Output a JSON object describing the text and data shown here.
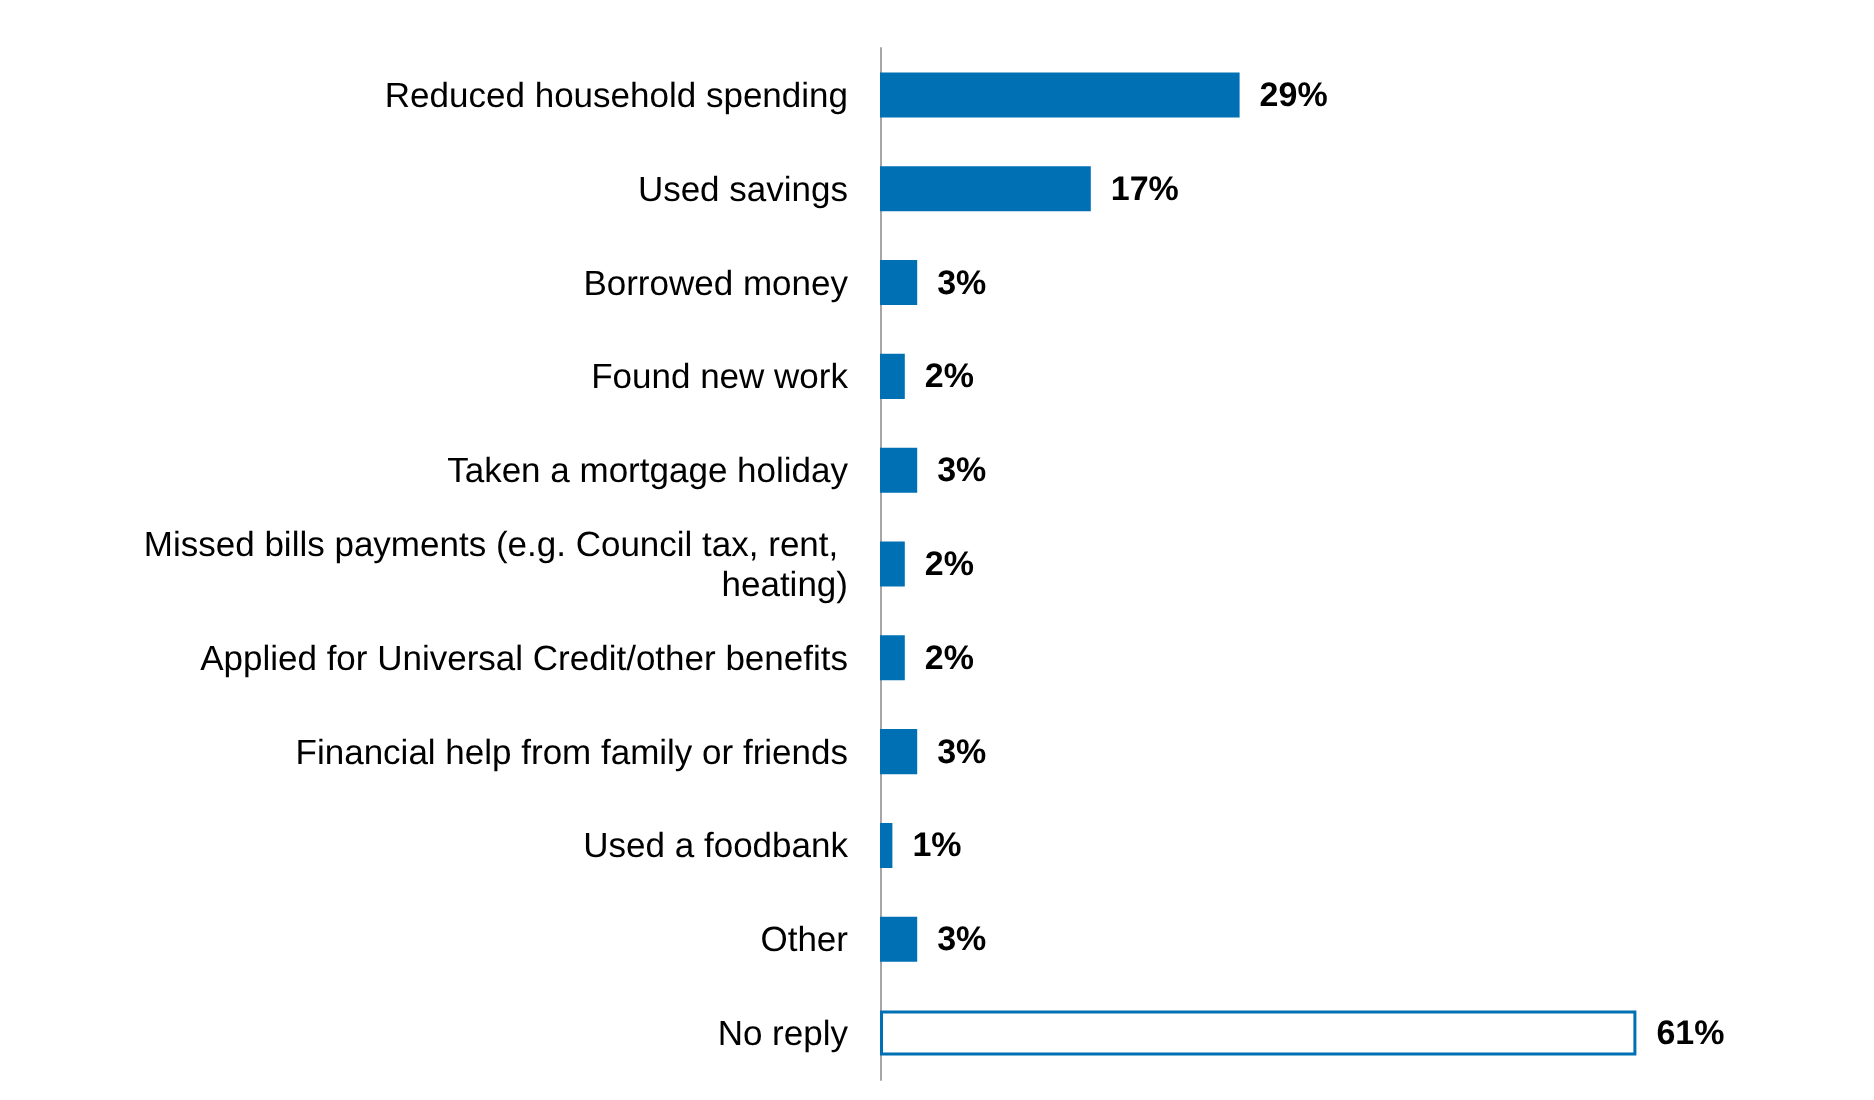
{
  "chart_data": {
    "type": "bar",
    "orientation": "horizontal",
    "categories": [
      "Reduced household spending",
      "Used savings",
      "Borrowed money",
      "Found new work",
      "Taken a mortgage holiday",
      "Missed bills payments (e.g. Council tax, rent, heating)",
      "Applied for Universal Credit/other benefits",
      "Financial help from family or friends",
      "Used a foodbank",
      "Other",
      "No reply"
    ],
    "values": [
      29,
      17,
      3,
      2,
      3,
      2,
      2,
      3,
      1,
      3,
      61
    ],
    "color": "#0070b4",
    "colors": [
      "#0070b4",
      "#0070b4",
      "#0070b4",
      "#0070b4",
      "#0070b4",
      "#0070b4",
      "#0070b4",
      "#0070b4",
      "#0070b4",
      "#0070b4",
      "#ffffff"
    ],
    "value_labels": [
      "29%",
      "17%",
      "3%",
      "2%",
      "3%",
      "2%",
      "2%",
      "3%",
      "1%",
      "3%",
      "61%"
    ]
  }
}
